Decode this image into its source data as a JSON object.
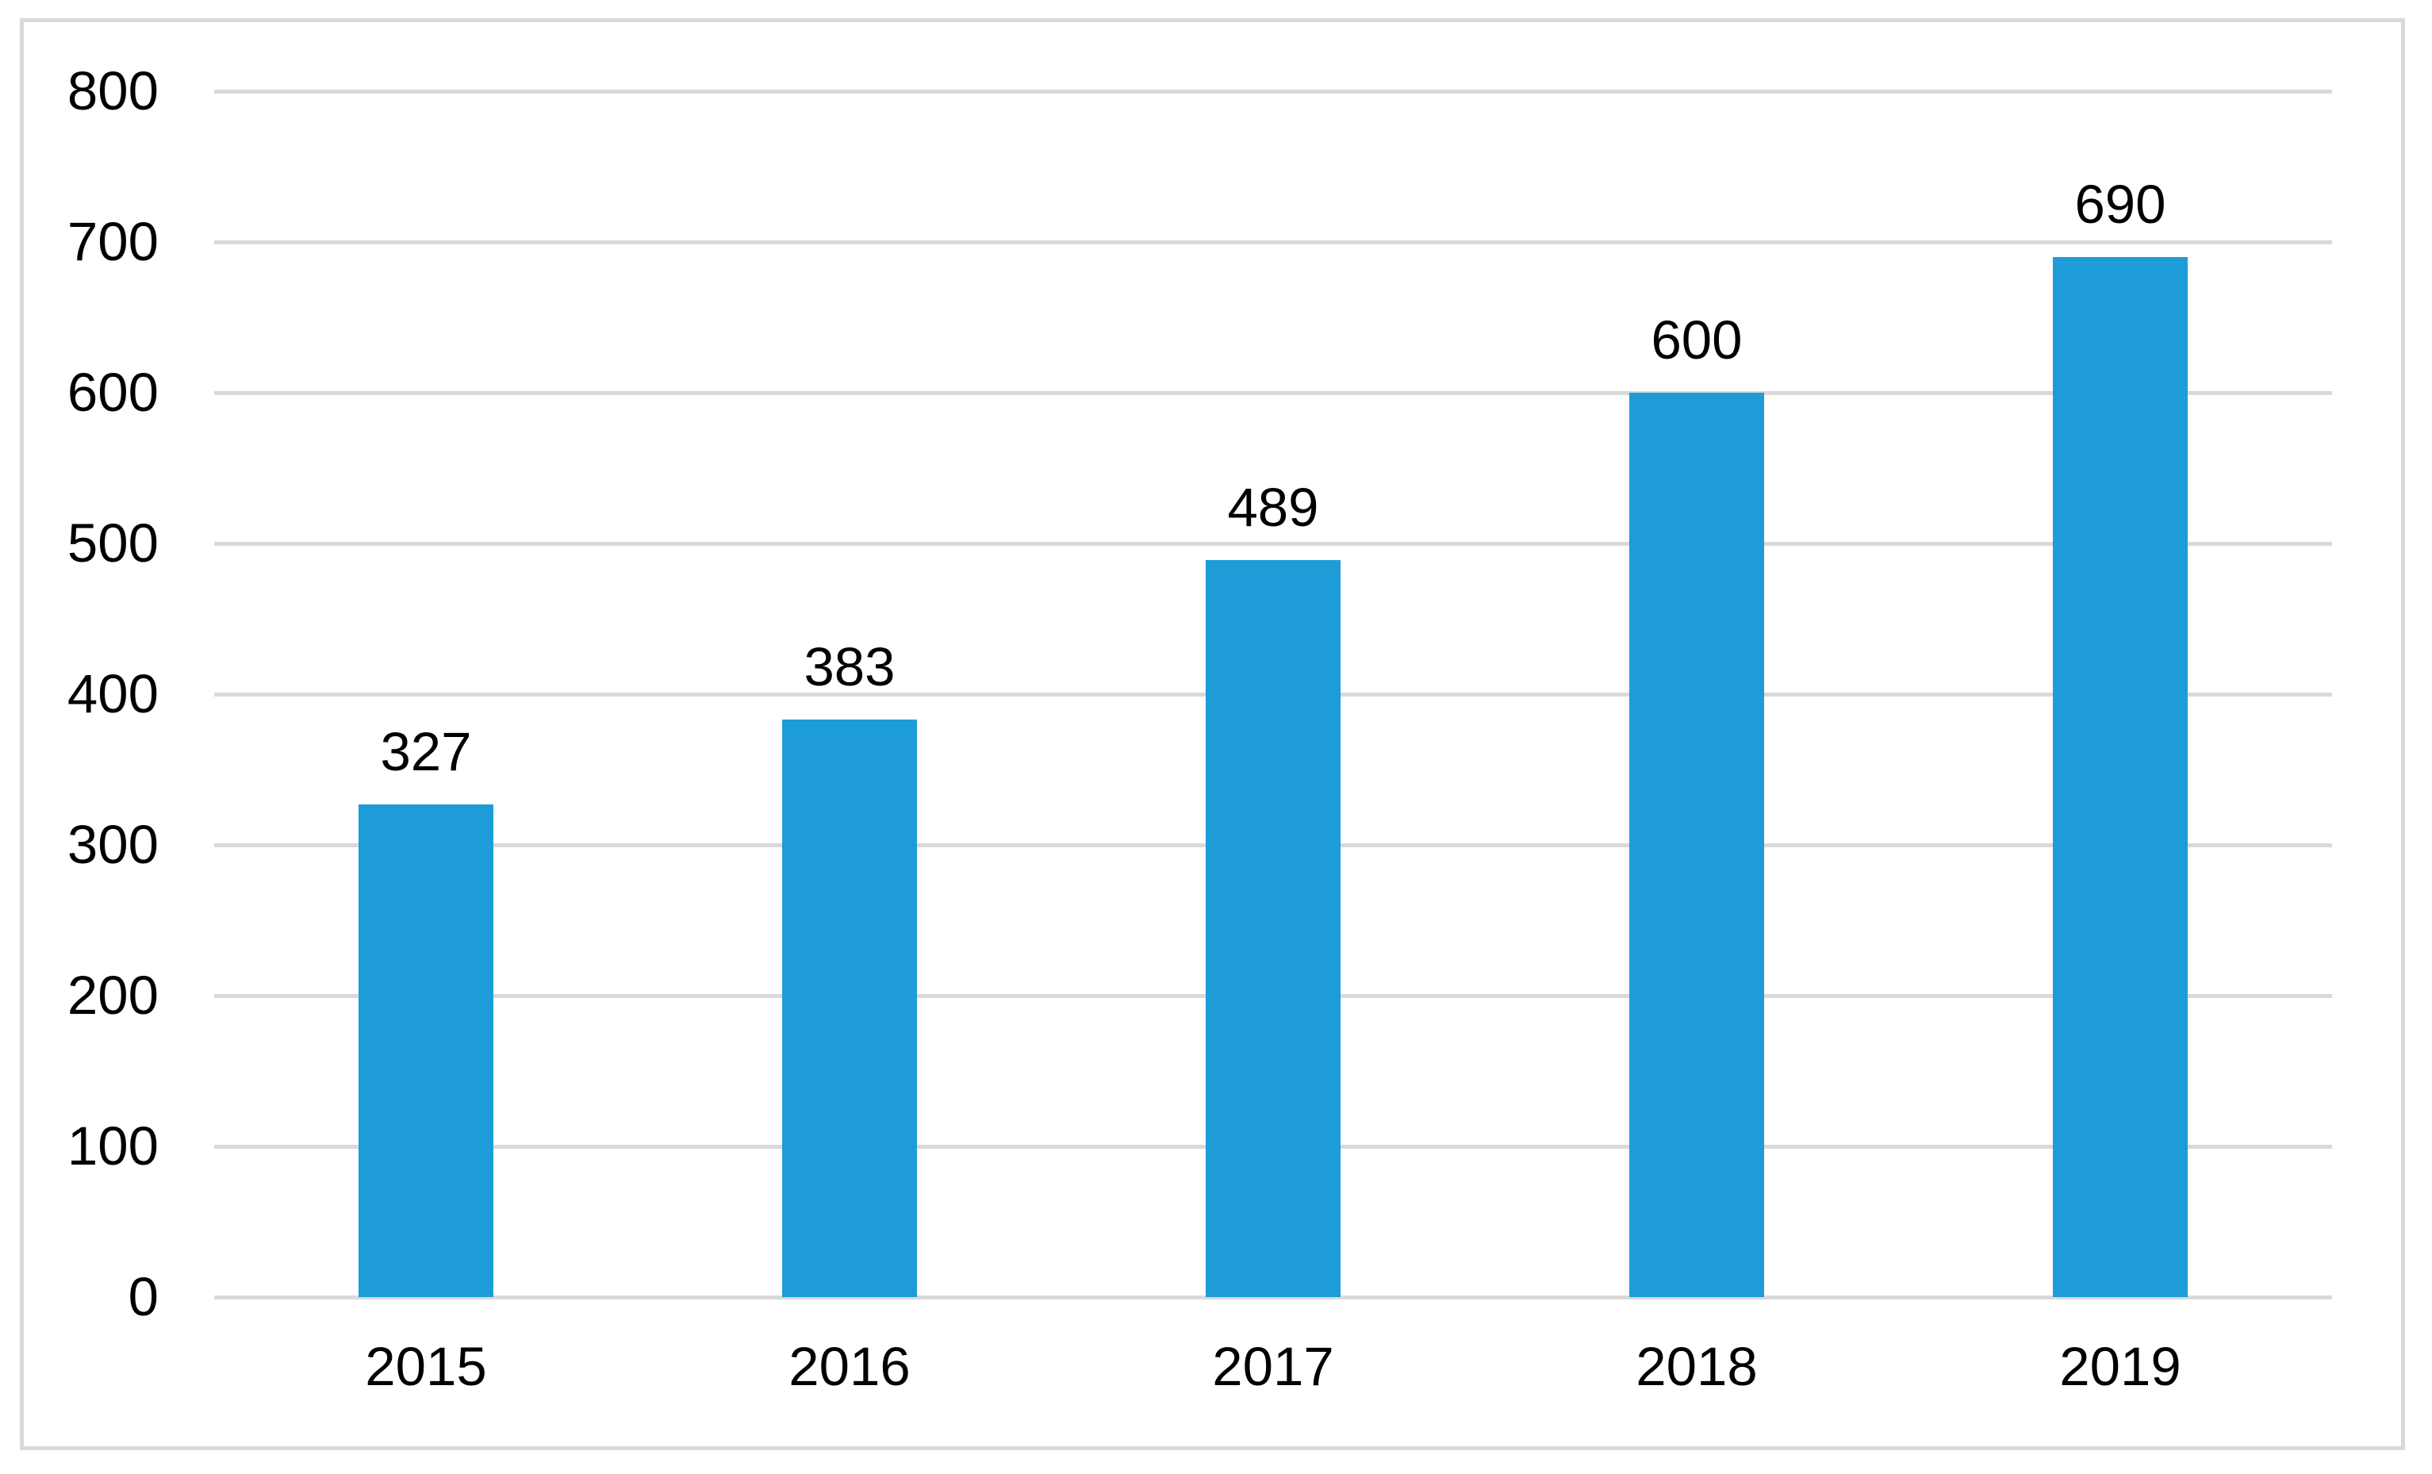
{
  "chart_data": {
    "type": "bar",
    "title": "",
    "xlabel": "",
    "ylabel": "",
    "categories": [
      "2015",
      "2016",
      "2017",
      "2018",
      "2019"
    ],
    "values": [
      327,
      383,
      489,
      600,
      690
    ],
    "data_labels": [
      "327",
      "383",
      "489",
      "600",
      "690"
    ],
    "y_ticks": [
      0,
      100,
      200,
      300,
      400,
      500,
      600,
      700,
      800
    ],
    "ylim": [
      0,
      800
    ],
    "grid": true,
    "legend": false,
    "colors": {
      "bar": "#1E9CD8",
      "gridline": "#D9D9D9",
      "frame_border": "#D9D9D9",
      "text": "#000000",
      "background": "#FFFFFF"
    }
  }
}
